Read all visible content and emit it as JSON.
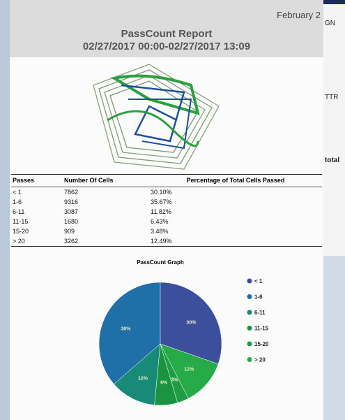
{
  "header": {
    "date": "February 2",
    "title": "PassCount Report",
    "range": "02/27/2017 00:00-02/27/2017 13:09"
  },
  "table": {
    "columns": [
      "Passes",
      "Number Of Cells",
      "Percentage of Total Cells Passed"
    ],
    "rows": [
      [
        "< 1",
        "7862",
        "30.10%"
      ],
      [
        "1-6",
        "9316",
        "35.67%"
      ],
      [
        "6-11",
        "3087",
        "11.82%"
      ],
      [
        "11-15",
        "1680",
        "6.43%"
      ],
      [
        "15-20",
        "909",
        "3.48%"
      ],
      [
        "> 20",
        "3262",
        "12.49%"
      ]
    ]
  },
  "chart_data": {
    "type": "pie",
    "title": "PassCount Graph",
    "categories": [
      "< 1",
      "1-6",
      "6-11",
      "11-15",
      "15-20",
      "> 20"
    ],
    "values": [
      30,
      36,
      12,
      6,
      3,
      12
    ],
    "value_labels": [
      "30%",
      "36%",
      "12%",
      "6%",
      "3%",
      "12%"
    ],
    "colors": [
      "#3b4f9c",
      "#1f6fa8",
      "#178a78",
      "#1a9440",
      "#1f9c46",
      "#26ab48"
    ]
  },
  "side_panel": {
    "labels": [
      "GN",
      "TTR",
      "total"
    ]
  }
}
